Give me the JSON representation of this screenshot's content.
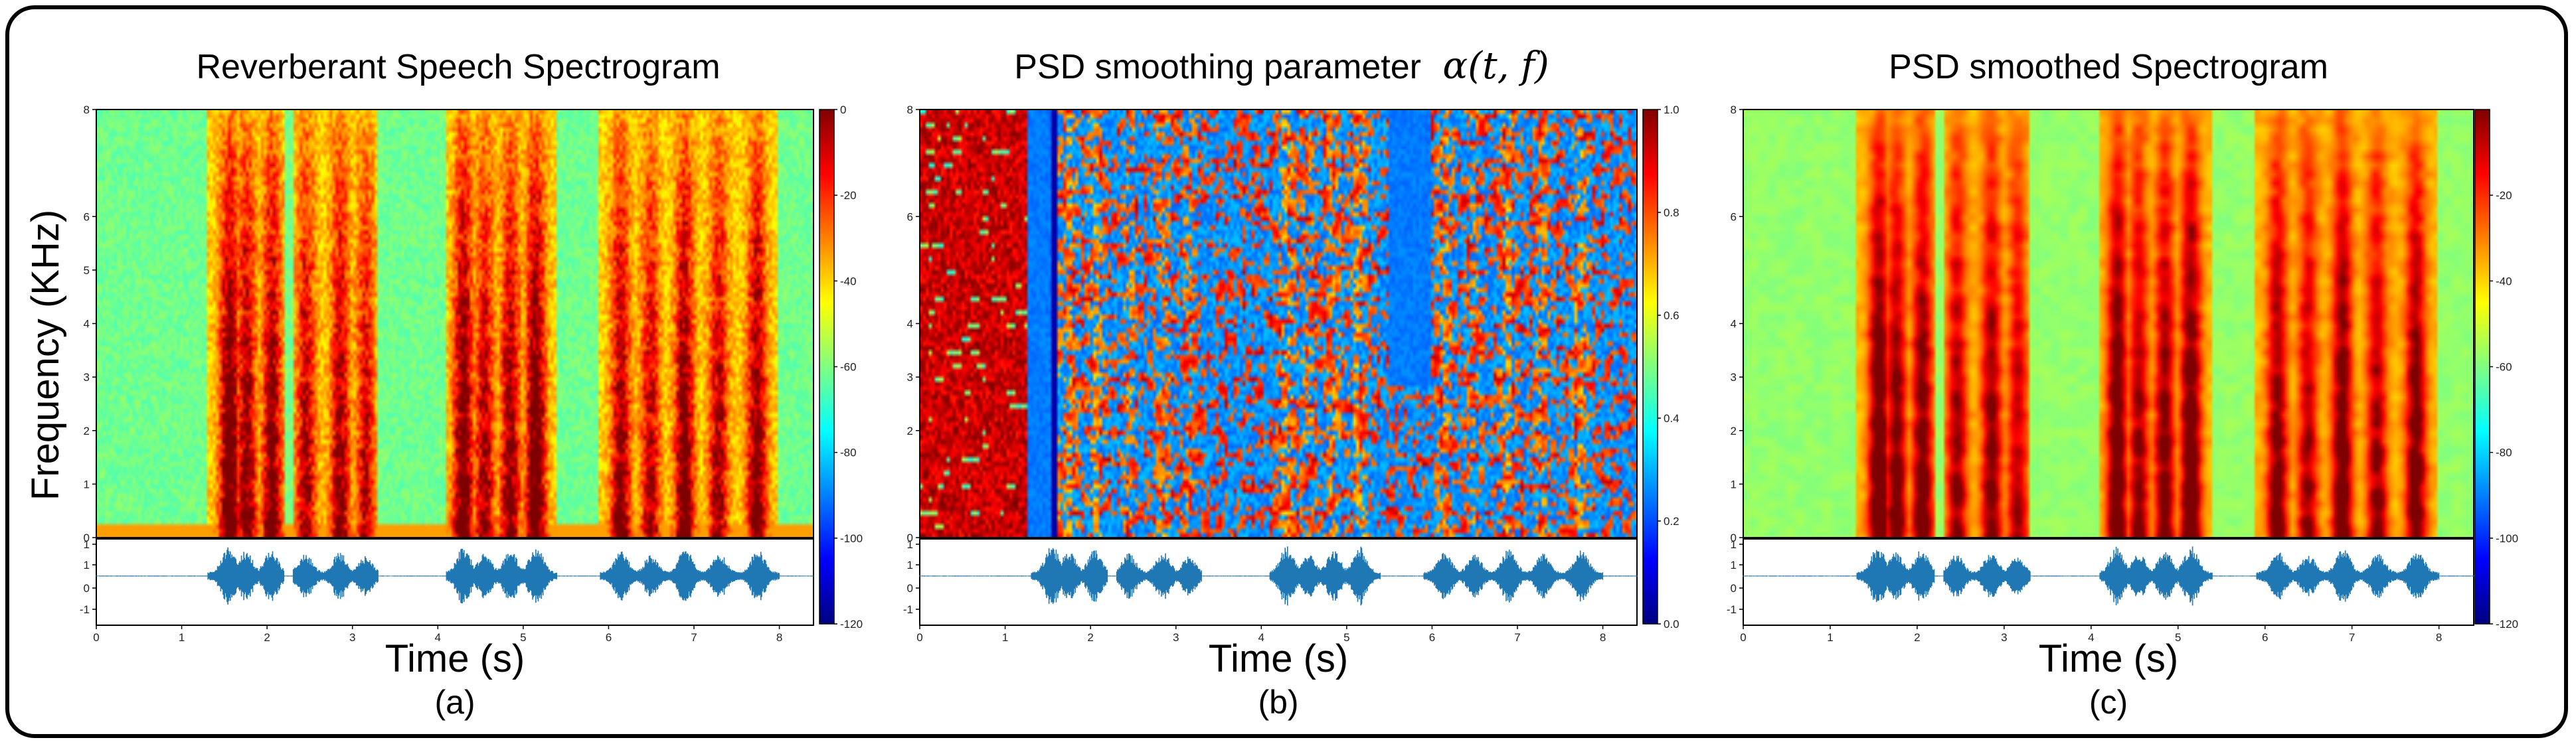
{
  "figure": {
    "ylabel": "Frequency (KHz)",
    "xlabel": "Time (s)"
  },
  "colors": {
    "waveform": "#1f77b4",
    "frame": "#000000",
    "jet": [
      "#00007f",
      "#0000ff",
      "#0080ff",
      "#00ffff",
      "#80ff80",
      "#ffff00",
      "#ff8000",
      "#ff0000",
      "#7f0000"
    ]
  },
  "chart_data": [
    {
      "type": "heatmap",
      "id": "a",
      "title": "Reverberant Speech  Spectrogram",
      "title_math": "",
      "caption": "(a)",
      "variant": "reverb",
      "xlabel": "Time (s)",
      "ylabel": "Frequency (KHz)",
      "x_ticks": [
        "0",
        "1",
        "2",
        "3",
        "4",
        "5",
        "6",
        "7",
        "8"
      ],
      "xlim": [
        0,
        8.4
      ],
      "y_ticks": [
        "0",
        "1",
        "2",
        "3",
        "4",
        "5",
        "6",
        "8"
      ],
      "ylim": [
        0,
        8
      ],
      "colorbar": {
        "ticks": [
          "0",
          "-20",
          "-40",
          "-60",
          "-80",
          "-100",
          "-120"
        ],
        "range": [
          -120,
          0
        ]
      },
      "waveform": {
        "yticks": [
          "1",
          "1",
          "0",
          "-1"
        ]
      },
      "speech_segments_s": [
        [
          1.3,
          2.2
        ],
        [
          2.3,
          3.3
        ],
        [
          4.1,
          5.4
        ],
        [
          5.9,
          7.0
        ],
        [
          7.0,
          8.0
        ]
      ]
    },
    {
      "type": "heatmap",
      "id": "b",
      "title": "PSD smoothing parameter ",
      "title_math": "α(t, f)",
      "caption": "(b)",
      "variant": "alpha",
      "xlabel": "Time (s)",
      "x_ticks": [
        "0",
        "1",
        "2",
        "3",
        "4",
        "5",
        "6",
        "7",
        "8"
      ],
      "xlim": [
        0,
        8.4
      ],
      "y_ticks": [
        "0",
        "2",
        "3",
        "4",
        "6",
        "8"
      ],
      "ylim": [
        0,
        8
      ],
      "colorbar": {
        "ticks": [
          "1.0",
          "0.8",
          "0.6",
          "0.4",
          "0.2",
          "0.0"
        ],
        "range": [
          0,
          1
        ]
      },
      "waveform": {
        "yticks": [
          "1",
          "1",
          "0",
          "-1"
        ]
      },
      "speech_segments_s": [
        [
          1.3,
          2.2
        ],
        [
          2.3,
          3.3
        ],
        [
          4.1,
          5.4
        ],
        [
          5.9,
          7.0
        ],
        [
          7.0,
          8.0
        ]
      ]
    },
    {
      "type": "heatmap",
      "id": "c",
      "title": "PSD smoothed Spectrogram",
      "title_math": "",
      "caption": "(c)",
      "variant": "smooth",
      "xlabel": "Time (s)",
      "x_ticks": [
        "0",
        "1",
        "2",
        "3",
        "4",
        "5",
        "6",
        "7",
        "8"
      ],
      "xlim": [
        0,
        8.4
      ],
      "y_ticks": [
        "0",
        "1",
        "2",
        "3",
        "4",
        "6",
        "8"
      ],
      "ylim": [
        0,
        8
      ],
      "colorbar": {
        "ticks": [
          "-20",
          "-40",
          "-60",
          "-80",
          "-100",
          "-120"
        ],
        "range": [
          -120,
          0
        ]
      },
      "waveform": {
        "yticks": [
          "1",
          "1",
          "0",
          "-1"
        ]
      },
      "speech_segments_s": [
        [
          1.3,
          2.2
        ],
        [
          2.3,
          3.3
        ],
        [
          4.1,
          5.4
        ],
        [
          5.9,
          7.0
        ],
        [
          7.0,
          8.0
        ]
      ]
    }
  ]
}
